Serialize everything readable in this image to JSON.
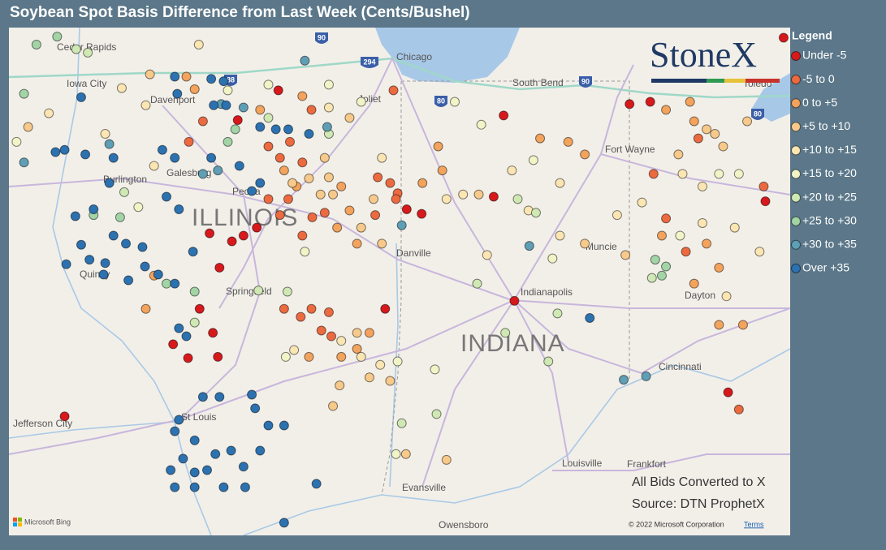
{
  "title": "Soybean Spot Basis Difference from Last Week (Cents/Bushel)",
  "logo": "StoneX",
  "legend": {
    "title": "Legend",
    "items": [
      {
        "label": "Under -5",
        "color": "#d7191c"
      },
      {
        "label": "-5 to 0",
        "color": "#ec6a3f"
      },
      {
        "label": "0 to +5",
        "color": "#f3a35c"
      },
      {
        "label": "+5 to +10",
        "color": "#f7c98a"
      },
      {
        "label": "+10 to +15",
        "color": "#fbe6b3"
      },
      {
        "label": "+15 to +20",
        "color": "#f1f4c7"
      },
      {
        "label": "+20 to +25",
        "color": "#cfe8b4"
      },
      {
        "label": "+25 to +30",
        "color": "#a3d4a6"
      },
      {
        "label": "+30 to +35",
        "color": "#5f9fb5"
      },
      {
        "label": "Over +35",
        "color": "#2c72b0"
      }
    ]
  },
  "notes": [
    "All Bids Converted to X",
    "Source: DTN ProphetX"
  ],
  "attribution": {
    "bing": "Microsoft Bing",
    "copyright": "© 2022 Microsoft Corporation",
    "terms": "Terms"
  },
  "places": [
    "Cedar Rapids",
    "Iowa City",
    "Davenport",
    "Burlington",
    "Galesburg",
    "Peoria",
    "ILLINOIS",
    "Springfield",
    "Quincy",
    "Jefferson City",
    "St Louis",
    "Chicago",
    "Joliet",
    "South Bend",
    "Fort Wayne",
    "Toledo",
    "Muncie",
    "Danville",
    "Indianapolis",
    "INDIANA",
    "Dayton",
    "Cincinnati",
    "Louisville",
    "Frankfort",
    "Evansville",
    "Owensboro"
  ],
  "highway_shields": [
    "90",
    "294",
    "88",
    "80",
    "90",
    "80"
  ],
  "points": [
    [
      -89.01,
      41.6,
      0
    ],
    [
      -89.5,
      41.34,
      0
    ],
    [
      -89.43,
      40.33,
      0
    ],
    [
      -89.27,
      40.4,
      0
    ],
    [
      -89.57,
      40.28,
      0
    ],
    [
      -89.84,
      40.35,
      0
    ],
    [
      -89.72,
      40.05,
      0
    ],
    [
      -89.96,
      39.69,
      0
    ],
    [
      -89.8,
      39.48,
      0
    ],
    [
      -90.1,
      39.26,
      0
    ],
    [
      -89.74,
      39.27,
      0
    ],
    [
      -90.28,
      39.38,
      0
    ],
    [
      -91.59,
      38.75,
      0
    ],
    [
      -87.46,
      40.56,
      0
    ],
    [
      -87.28,
      40.52,
      0
    ],
    [
      -86.41,
      40.67,
      0
    ],
    [
      -86.16,
      39.76,
      0
    ],
    [
      -87.72,
      39.69,
      0
    ],
    [
      -86.29,
      41.38,
      0
    ],
    [
      -82.91,
      42.06,
      0
    ],
    [
      -84.77,
      41.48,
      0
    ],
    [
      -84.52,
      41.5,
      0
    ],
    [
      -83.13,
      40.63,
      0
    ],
    [
      -83.58,
      38.96,
      0
    ],
    [
      -89.13,
      41.11,
      1
    ],
    [
      -88.99,
      41.01,
      1
    ],
    [
      -88.87,
      41.15,
      1
    ],
    [
      -88.72,
      40.97,
      1
    ],
    [
      -88.6,
      40.49,
      1
    ],
    [
      -88.45,
      40.53,
      1
    ],
    [
      -88.72,
      40.33,
      1
    ],
    [
      -88.99,
      40.51,
      1
    ],
    [
      -89.13,
      40.65,
      1
    ],
    [
      -88.89,
      40.65,
      1
    ],
    [
      -87.81,
      40.84,
      1
    ],
    [
      -87.66,
      40.79,
      1
    ],
    [
      -87.57,
      40.7,
      1
    ],
    [
      -87.84,
      40.51,
      1
    ],
    [
      -87.59,
      40.65,
      1
    ],
    [
      -88.49,
      39.5,
      1
    ],
    [
      -88.37,
      39.45,
      1
    ],
    [
      -88.74,
      39.62,
      1
    ],
    [
      -88.94,
      39.69,
      1
    ],
    [
      -88.61,
      39.69,
      1
    ],
    [
      -88.4,
      39.66,
      1
    ],
    [
      -90.09,
      41.15,
      1
    ],
    [
      -89.92,
      41.33,
      1
    ],
    [
      -84.33,
      40.48,
      1
    ],
    [
      -84.09,
      40.19,
      1
    ],
    [
      -84.48,
      40.87,
      1
    ],
    [
      -83.15,
      40.76,
      1
    ],
    [
      -83.45,
      38.81,
      1
    ],
    [
      -83.94,
      41.18,
      1
    ],
    [
      -87.62,
      41.6,
      1
    ],
    [
      -88.61,
      41.43,
      1
    ],
    [
      -88.15,
      40.55,
      2
    ],
    [
      -88.3,
      40.4,
      2
    ],
    [
      -88.06,
      40.26,
      2
    ],
    [
      -88.94,
      40.9,
      2
    ],
    [
      -88.79,
      40.76,
      2
    ],
    [
      -88.25,
      40.76,
      2
    ],
    [
      -87.91,
      39.48,
      2
    ],
    [
      -88.06,
      39.34,
      2
    ],
    [
      -88.25,
      39.27,
      2
    ],
    [
      -88.64,
      39.27,
      2
    ],
    [
      -87.08,
      41.11,
      2
    ],
    [
      -87.03,
      40.9,
      2
    ],
    [
      -87.27,
      40.79,
      2
    ],
    [
      -85.85,
      41.18,
      2
    ],
    [
      -85.51,
      41.15,
      2
    ],
    [
      -85.31,
      41.04,
      2
    ],
    [
      -83.69,
      40.05,
      2
    ],
    [
      -83.84,
      40.26,
      2
    ],
    [
      -83.99,
      39.91,
      2
    ],
    [
      -84.38,
      40.33,
      2
    ],
    [
      -83.4,
      39.55,
      2
    ],
    [
      -83.69,
      39.55,
      2
    ],
    [
      -90.61,
      39.69,
      2
    ],
    [
      -90.51,
      39.98,
      2
    ],
    [
      -90.12,
      41.72,
      2
    ],
    [
      -90.02,
      41.61,
      2
    ],
    [
      -89.23,
      41.43,
      2
    ],
    [
      -88.72,
      41.55,
      2
    ],
    [
      -84.33,
      41.43,
      2
    ],
    [
      -84.04,
      41.5,
      2
    ],
    [
      -83.99,
      41.33,
      2
    ],
    [
      -88.64,
      40.83,
      3
    ],
    [
      -88.4,
      40.84,
      3
    ],
    [
      -88.5,
      40.69,
      3
    ],
    [
      -88.35,
      40.69,
      3
    ],
    [
      -88.84,
      40.79,
      3
    ],
    [
      -88.45,
      41.01,
      3
    ],
    [
      -87.86,
      40.65,
      3
    ],
    [
      -88.01,
      40.4,
      3
    ],
    [
      -87.76,
      40.26,
      3
    ],
    [
      -88.06,
      39.48,
      3
    ],
    [
      -88.35,
      38.84,
      3
    ],
    [
      -88.27,
      39.02,
      3
    ],
    [
      -87.66,
      39.06,
      3
    ],
    [
      -87.91,
      39.09,
      3
    ],
    [
      -86.98,
      38.37,
      3
    ],
    [
      -87.47,
      38.42,
      3
    ],
    [
      -85.31,
      40.26,
      3
    ],
    [
      -84.82,
      40.16,
      3
    ],
    [
      -83.74,
      41.22,
      3
    ],
    [
      -83.84,
      41.26,
      3
    ],
    [
      -83.64,
      41.11,
      3
    ],
    [
      -83.35,
      41.33,
      3
    ],
    [
      -84.18,
      41.04,
      3
    ],
    [
      -92.03,
      41.28,
      3
    ],
    [
      -90.56,
      41.74,
      3
    ],
    [
      -88.15,
      41.36,
      3
    ],
    [
      -86.59,
      40.69,
      3
    ],
    [
      -88.4,
      41.45,
      4
    ],
    [
      -87.76,
      41.01,
      4
    ],
    [
      -86.98,
      40.65,
      4
    ],
    [
      -86.78,
      40.69,
      4
    ],
    [
      -86.19,
      40.9,
      4
    ],
    [
      -85.61,
      40.79,
      4
    ],
    [
      -85.99,
      40.55,
      4
    ],
    [
      -86.49,
      40.16,
      4
    ],
    [
      -85.61,
      40.33,
      4
    ],
    [
      -84.92,
      40.51,
      4
    ],
    [
      -84.13,
      40.87,
      4
    ],
    [
      -83.89,
      40.76,
      4
    ],
    [
      -84.62,
      40.62,
      4
    ],
    [
      -88.25,
      39.41,
      4
    ],
    [
      -88.82,
      39.33,
      4
    ],
    [
      -88.01,
      39.27,
      4
    ],
    [
      -87.78,
      39.2,
      4
    ],
    [
      -83.6,
      39.8,
      4
    ],
    [
      -83.2,
      40.19,
      4
    ],
    [
      -83.5,
      40.4,
      4
    ],
    [
      -83.89,
      40.44,
      4
    ],
    [
      -91.78,
      41.4,
      4
    ],
    [
      -91.1,
      41.22,
      4
    ],
    [
      -90.51,
      40.94,
      4
    ],
    [
      -89.97,
      42.0,
      4
    ],
    [
      -90.61,
      41.47,
      4
    ],
    [
      -90.9,
      41.62,
      4
    ],
    [
      -86.56,
      41.3,
      5
    ],
    [
      -85.93,
      40.99,
      5
    ],
    [
      -85.7,
      40.13,
      5
    ],
    [
      -84.16,
      40.33,
      5
    ],
    [
      -88.69,
      40.19,
      5
    ],
    [
      -87.57,
      39.23,
      5
    ],
    [
      -87.12,
      39.16,
      5
    ],
    [
      -87.59,
      38.42,
      5
    ],
    [
      -88.92,
      39.27,
      5
    ],
    [
      -89.62,
      41.6,
      5
    ],
    [
      -89.13,
      41.65,
      5
    ],
    [
      -88.4,
      41.65,
      5
    ],
    [
      -88.01,
      41.5,
      5
    ],
    [
      -86.88,
      41.5,
      5
    ],
    [
      -90.7,
      40.58,
      5
    ],
    [
      -92.17,
      41.15,
      5
    ],
    [
      -83.45,
      40.87,
      5
    ],
    [
      -83.69,
      40.87,
      5
    ],
    [
      -86.12,
      40.65,
      6
    ],
    [
      -85.9,
      40.53,
      6
    ],
    [
      -85.64,
      39.65,
      6
    ],
    [
      -86.27,
      39.48,
      6
    ],
    [
      -86.61,
      39.91,
      6
    ],
    [
      -88.9,
      39.84,
      6
    ],
    [
      -89.25,
      39.85,
      6
    ],
    [
      -88.4,
      41.22,
      6
    ],
    [
      -91.31,
      41.93,
      6
    ],
    [
      -91.45,
      41.96,
      6
    ],
    [
      -90.87,
      40.71,
      6
    ],
    [
      -89.13,
      41.36,
      6
    ],
    [
      -87.52,
      38.69,
      6
    ],
    [
      -87.1,
      38.77,
      6
    ],
    [
      -90.02,
      39.57,
      6
    ],
    [
      -85.75,
      39.23,
      6
    ],
    [
      -84.5,
      39.96,
      6
    ],
    [
      -84.33,
      40.06,
      7
    ],
    [
      -84.46,
      40.12,
      7
    ],
    [
      -84.38,
      39.98,
      7
    ],
    [
      -91.24,
      40.51,
      7
    ],
    [
      -90.92,
      40.49,
      7
    ],
    [
      -89.62,
      41.15,
      7
    ],
    [
      -89.53,
      41.26,
      7
    ],
    [
      -90.02,
      39.84,
      7
    ],
    [
      -90.36,
      39.91,
      7
    ],
    [
      -91.93,
      42.0,
      7
    ],
    [
      -91.68,
      42.07,
      7
    ],
    [
      -92.08,
      41.57,
      7
    ],
    [
      -85.98,
      40.24,
      8
    ],
    [
      -84.57,
      39.1,
      8
    ],
    [
      -84.84,
      39.07,
      8
    ],
    [
      -89.7,
      41.48,
      8
    ],
    [
      -89.43,
      41.45,
      8
    ],
    [
      -89.92,
      40.87,
      8
    ],
    [
      -89.74,
      40.9,
      8
    ],
    [
      -91.05,
      41.13,
      8
    ],
    [
      -92.08,
      40.97,
      8
    ],
    [
      -87.52,
      40.42,
      8
    ],
    [
      -88.42,
      41.28,
      8
    ],
    [
      -88.69,
      41.86,
      8
    ],
    [
      -90.26,
      41.72,
      9
    ],
    [
      -90.23,
      41.57,
      9
    ],
    [
      -89.82,
      41.7,
      9
    ],
    [
      -89.67,
      41.68,
      9
    ],
    [
      -89.79,
      41.47,
      9
    ],
    [
      -89.64,
      41.47,
      9
    ],
    [
      -89.23,
      41.28,
      9
    ],
    [
      -89.04,
      41.26,
      9
    ],
    [
      -88.89,
      41.26,
      9
    ],
    [
      -88.64,
      41.22,
      9
    ],
    [
      -91.39,
      41.54,
      9
    ],
    [
      -91.59,
      41.08,
      9
    ],
    [
      -91.7,
      41.06,
      9
    ],
    [
      -91.34,
      41.04,
      9
    ],
    [
      -90.41,
      41.08,
      9
    ],
    [
      -90.26,
      41.01,
      9
    ],
    [
      -89.82,
      41.01,
      9
    ],
    [
      -89.48,
      40.94,
      9
    ],
    [
      -91.0,
      41.01,
      9
    ],
    [
      -91.05,
      40.79,
      9
    ],
    [
      -90.36,
      40.67,
      9
    ],
    [
      -90.21,
      40.56,
      9
    ],
    [
      -91.46,
      40.5,
      9
    ],
    [
      -91.24,
      40.56,
      9
    ],
    [
      -91.0,
      40.33,
      9
    ],
    [
      -90.85,
      40.26,
      9
    ],
    [
      -90.65,
      40.23,
      9
    ],
    [
      -91.39,
      40.25,
      9
    ],
    [
      -91.57,
      40.08,
      9
    ],
    [
      -91.29,
      40.12,
      9
    ],
    [
      -91.1,
      40.09,
      9
    ],
    [
      -91.12,
      39.99,
      9
    ],
    [
      -90.82,
      39.94,
      9
    ],
    [
      -90.62,
      40.06,
      9
    ],
    [
      -90.46,
      39.99,
      9
    ],
    [
      -90.26,
      39.91,
      9
    ],
    [
      -90.04,
      40.19,
      9
    ],
    [
      -89.33,
      40.72,
      9
    ],
    [
      -89.23,
      40.79,
      9
    ],
    [
      -90.21,
      38.72,
      9
    ],
    [
      -90.26,
      38.62,
      9
    ],
    [
      -90.02,
      38.54,
      9
    ],
    [
      -89.77,
      38.42,
      9
    ],
    [
      -89.58,
      38.45,
      9
    ],
    [
      -89.43,
      38.31,
      9
    ],
    [
      -89.87,
      38.28,
      9
    ],
    [
      -90.02,
      38.26,
      9
    ],
    [
      -90.16,
      38.38,
      9
    ],
    [
      -90.31,
      38.28,
      9
    ],
    [
      -90.26,
      38.13,
      9
    ],
    [
      -90.02,
      38.13,
      9
    ],
    [
      -89.67,
      38.13,
      9
    ],
    [
      -89.41,
      38.13,
      9
    ],
    [
      -89.23,
      38.45,
      9
    ],
    [
      -89.13,
      38.67,
      9
    ],
    [
      -88.94,
      38.67,
      9
    ],
    [
      -88.94,
      37.82,
      9
    ],
    [
      -88.55,
      38.16,
      9
    ],
    [
      -89.92,
      38.92,
      9
    ],
    [
      -89.72,
      38.92,
      9
    ],
    [
      -89.33,
      38.94,
      9
    ],
    [
      -89.29,
      38.82,
      9
    ],
    [
      -85.25,
      39.61,
      9
    ],
    [
      -90.21,
      39.52,
      9
    ],
    [
      -90.12,
      39.45,
      9
    ]
  ]
}
